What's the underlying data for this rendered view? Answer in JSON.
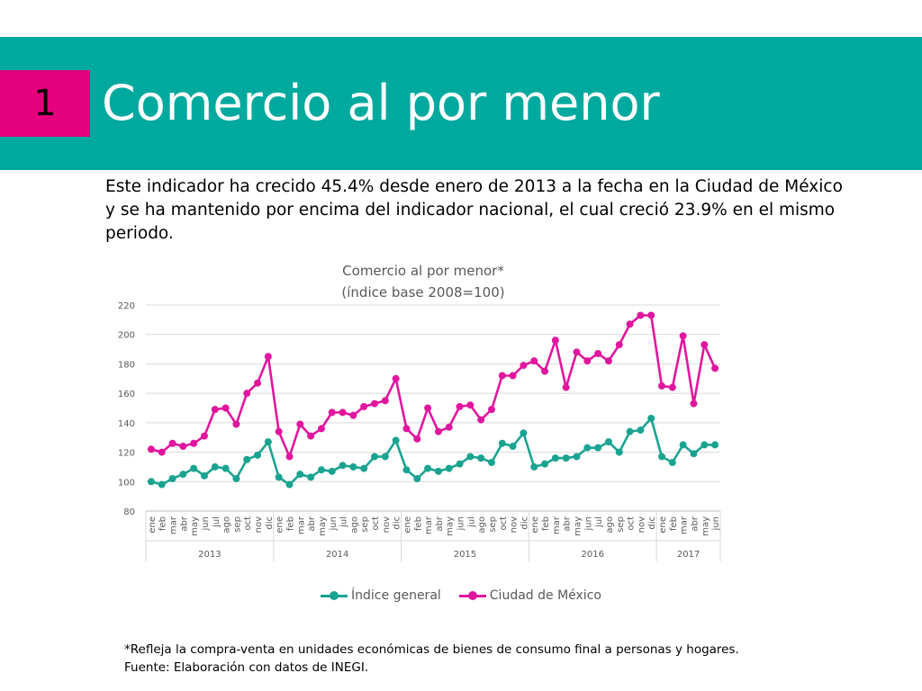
{
  "header": {
    "number": "1",
    "title": "Comercio al por menor"
  },
  "intro": "Este indicador ha crecido 45.4% desde enero de 2013 a la fecha en la Ciudad de México y se ha mantenido por encima del indicador nacional, el cual creció 23.9% en el mismo periodo.",
  "colors": {
    "banner": "#00A99D",
    "number_box": "#E4007C",
    "series_general": "#1AA391",
    "series_cdmx": "#E0169E"
  },
  "chart_data": {
    "type": "line",
    "title_line1": "Comercio al por menor*",
    "title_line2": "(índice base 2008=100)",
    "ylim": [
      80,
      220
    ],
    "yticks": [
      80,
      100,
      120,
      140,
      160,
      180,
      200,
      220
    ],
    "grid": true,
    "legend_position": "bottom",
    "years": [
      {
        "label": "2013",
        "months": 12
      },
      {
        "label": "2014",
        "months": 12
      },
      {
        "label": "2015",
        "months": 12
      },
      {
        "label": "2016",
        "months": 12
      },
      {
        "label": "2017",
        "months": 6
      }
    ],
    "categories": [
      "ene",
      "feb",
      "mar",
      "abr",
      "may",
      "jun",
      "jul",
      "ago",
      "sep",
      "oct",
      "nov",
      "dic",
      "ene",
      "feb",
      "mar",
      "abr",
      "may",
      "jun",
      "jul",
      "ago",
      "sep",
      "oct",
      "nov",
      "dic",
      "ene",
      "feb",
      "mar",
      "abr",
      "may",
      "jun",
      "jul",
      "ago",
      "sep",
      "oct",
      "nov",
      "dic",
      "ene",
      "feb",
      "mar",
      "abr",
      "may",
      "jun",
      "jul",
      "ago",
      "sep",
      "oct",
      "nov",
      "dic",
      "ene",
      "feb",
      "mar",
      "abr",
      "may",
      "jun"
    ],
    "series": [
      {
        "name": "Índice general",
        "values": [
          100,
          98,
          102,
          105,
          109,
          104,
          110,
          109,
          102,
          115,
          118,
          127,
          103,
          98,
          105,
          103,
          108,
          107,
          111,
          110,
          109,
          117,
          117,
          128,
          108,
          102,
          109,
          107,
          109,
          112,
          117,
          116,
          113,
          126,
          124,
          133,
          110,
          112,
          116,
          116,
          117,
          123,
          123,
          127,
          120,
          134,
          135,
          143,
          117,
          113,
          125,
          119,
          125,
          125
        ]
      },
      {
        "name": "Ciudad de México",
        "values": [
          122,
          120,
          126,
          124,
          126,
          131,
          149,
          150,
          139,
          160,
          167,
          185,
          134,
          117,
          139,
          131,
          136,
          147,
          147,
          145,
          151,
          153,
          155,
          170,
          136,
          129,
          150,
          134,
          137,
          151,
          152,
          142,
          149,
          172,
          172,
          179,
          182,
          175,
          196,
          164,
          188,
          182,
          187,
          182,
          193,
          207,
          213,
          213,
          165,
          164,
          199,
          153,
          193,
          177
        ]
      }
    ]
  },
  "footnote": {
    "line1": "*Refleja la compra-venta en unidades económicas de bienes de consumo final a personas y hogares.",
    "line2": "Fuente: Elaboración con datos de INEGI."
  }
}
